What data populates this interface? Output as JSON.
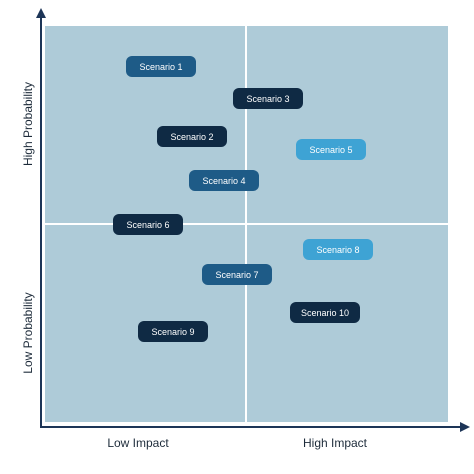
{
  "axes": {
    "x_low": "Low Impact",
    "x_high": "High Impact",
    "y_high": "High Probability",
    "y_low": "Low Probability"
  },
  "colors": {
    "background": "#aecbd8",
    "axis": "#1d3557",
    "dark_navy": "#0f2a44",
    "mid_blue": "#1e5b87",
    "light_blue": "#3ea3d4"
  },
  "scenarios": [
    {
      "label": "Scenario 1",
      "color": "mid_blue"
    },
    {
      "label": "Scenario 3",
      "color": "dark_navy"
    },
    {
      "label": "Scenario 2",
      "color": "dark_navy"
    },
    {
      "label": "Scenario 5",
      "color": "light_blue"
    },
    {
      "label": "Scenario 4",
      "color": "mid_blue"
    },
    {
      "label": "Scenario 6",
      "color": "dark_navy"
    },
    {
      "label": "Scenario 8",
      "color": "light_blue"
    },
    {
      "label": "Scenario 7",
      "color": "mid_blue"
    },
    {
      "label": "Scenario 10",
      "color": "dark_navy"
    },
    {
      "label": "Scenario 9",
      "color": "dark_navy"
    }
  ]
}
